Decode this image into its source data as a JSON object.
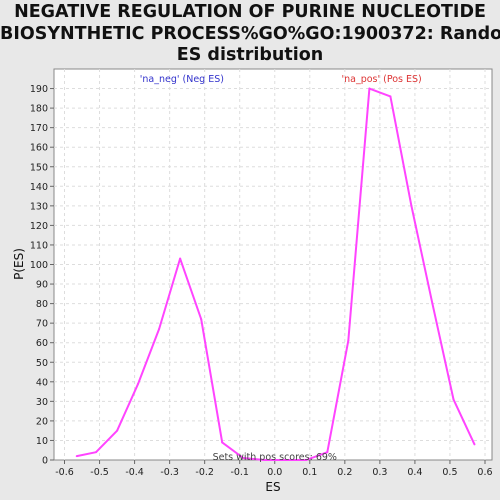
{
  "chart_data": {
    "type": "line",
    "title_lines": [
      "NEGATIVE REGULATION OF PURINE NUCLEOTIDE",
      "BIOSYNTHETIC PROCESS%GO%GO:1900372: Random",
      "ES distribution"
    ],
    "xlabel": "ES",
    "ylabel": "P(ES)",
    "xlim": [
      -0.63,
      0.62
    ],
    "ylim": [
      0,
      200
    ],
    "x_ticks": [
      -0.6,
      -0.5,
      -0.4,
      -0.3,
      -0.2,
      -0.1,
      0.0,
      0.1,
      0.2,
      0.3,
      0.4,
      0.5,
      0.6
    ],
    "x_tick_labels": [
      "-0.6",
      "-0.5",
      "-0.4",
      "-0.3",
      "-0.2",
      "-0.1",
      "0.0",
      "0.1",
      "0.2",
      "0.3",
      "0.4",
      "0.5",
      "0.6"
    ],
    "y_ticks": [
      0,
      10,
      20,
      30,
      40,
      50,
      60,
      70,
      80,
      90,
      100,
      110,
      120,
      130,
      140,
      150,
      160,
      170,
      180,
      190
    ],
    "y_tick_labels": [
      "0",
      "10",
      "20",
      "30",
      "40",
      "50",
      "60",
      "70",
      "80",
      "90",
      "100",
      "110",
      "120",
      "130",
      "140",
      "150",
      "160",
      "170",
      "180",
      "190"
    ],
    "grid": true,
    "legend": "none",
    "series": [
      {
        "color": "#ff44ff",
        "x": [
          -0.565,
          -0.51,
          -0.45,
          -0.39,
          -0.33,
          -0.27,
          -0.21,
          -0.15,
          -0.09,
          -0.03,
          0.03,
          0.09,
          0.15,
          0.21,
          0.27,
          0.33,
          0.39,
          0.45,
          0.51,
          0.57
        ],
        "y": [
          2,
          4,
          15,
          39,
          67,
          103,
          72,
          9,
          1,
          0,
          0,
          0,
          4,
          61,
          190,
          186,
          130,
          80,
          31,
          8
        ]
      }
    ],
    "annotations": [
      {
        "text": "'na_neg' (Neg ES)",
        "x": -0.265,
        "y": 195,
        "color": "#3333cc"
      },
      {
        "text": "'na_pos' (Pos ES)",
        "x": 0.305,
        "y": 195,
        "color": "#dd3333"
      },
      {
        "text": "Sets with pos scores: 69%",
        "x": 0.0,
        "y": 1.5,
        "color": "#444444"
      }
    ]
  }
}
